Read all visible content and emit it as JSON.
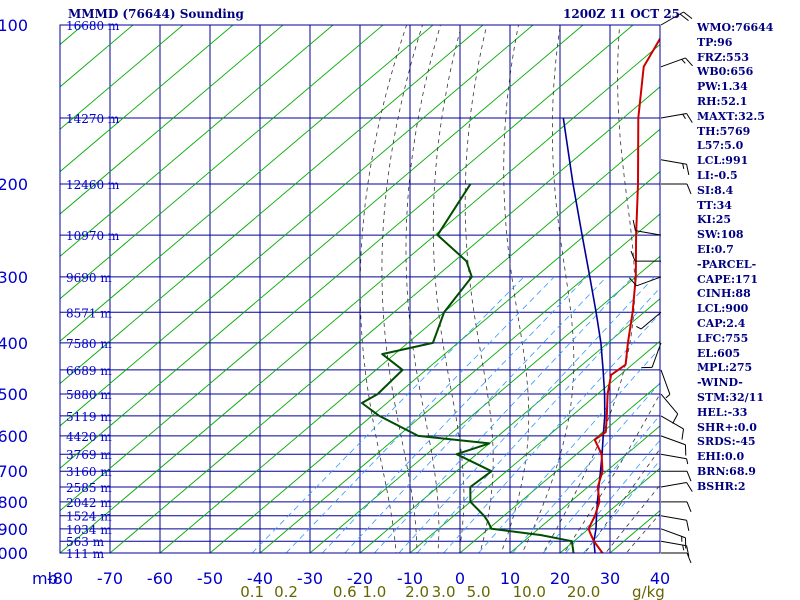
{
  "header": {
    "station": "MMMD (76644) Sounding",
    "datetime": "1200Z 11 OCT 25"
  },
  "indices": [
    "WMO:76644",
    "TP:96",
    "FRZ:553",
    "WB0:656",
    "PW:1.34",
    "RH:52.1",
    "MAXT:32.5",
    "TH:5769",
    "L57:5.0",
    "LCL:991",
    "LI:-0.5",
    "SI:8.4",
    "TT:34",
    "KI:25",
    "SW:108",
    "EI:0.7",
    "-PARCEL-",
    "CAPE:171",
    "CINH:88",
    "LCL:900",
    "CAP:2.4",
    "LFC:755",
    "EL:605",
    "MPL:275",
    "-WIND-",
    "STM:32/11",
    "HEL:-33",
    "SHR+:0.0",
    "SRDS:-45",
    "EHI:0.0",
    "BRN:68.9",
    "BSHR:2"
  ],
  "colors": {
    "isobar": "#000099",
    "isotherm": "#000099",
    "dry_adiabat": "#00aa00",
    "moist_adiabat": "#333333",
    "mixing_ratio": "#3399ff",
    "temperature": "#cc0000",
    "dewpoint": "#004d00",
    "parcel": "#000099",
    "axis_text": "#0000cc",
    "mixing_text": "#666600",
    "wind": "#000000"
  },
  "chart_data": {
    "type": "skew-t",
    "xlabel_unit": "mb",
    "mixing_unit": "g/kg",
    "pressure_axis": [
      100,
      1000
    ],
    "temperature_axis": [
      -80,
      40
    ],
    "pressure_ticks": [
      100,
      200,
      300,
      400,
      500,
      600,
      700,
      800,
      900,
      1000
    ],
    "pressure_tick_labels": [
      "100",
      "200",
      "300",
      "400",
      "500",
      "600",
      "700",
      "800",
      "900",
      "1000"
    ],
    "temperature_ticks": [
      -80,
      -70,
      -60,
      -50,
      -40,
      -30,
      -20,
      -10,
      0,
      10,
      20,
      30,
      40
    ],
    "temperature_tick_labels": [
      "-80",
      "-70",
      "-60",
      "-50",
      "-40",
      "-30",
      "-20",
      "-10",
      "0",
      "10",
      "20",
      "30",
      "40"
    ],
    "mixing_ratio_labels": [
      {
        "text": "0.1",
        "value": 0.1
      },
      {
        "text": "0.2",
        "value": 0.2
      },
      {
        "text": "0.6",
        "value": 0.6
      },
      {
        "text": "1.0",
        "value": 1.0
      },
      {
        "text": "2.0",
        "value": 2.0
      },
      {
        "text": "3.0",
        "value": 3.0
      },
      {
        "text": "5.0",
        "value": 5.0
      },
      {
        "text": "10.0",
        "value": 10.0
      },
      {
        "text": "20.0",
        "value": 20.0
      }
    ],
    "mixing_ratio_lines": [
      0.1,
      0.2,
      0.4,
      0.6,
      1.0,
      1.5,
      2.0,
      3.0,
      5.0,
      8.0,
      12.0,
      16.0,
      20.0
    ],
    "height_labels": [
      {
        "p": 100,
        "text": "16680 m"
      },
      {
        "p": 150,
        "text": "14270 m"
      },
      {
        "p": 200,
        "text": "12460 m"
      },
      {
        "p": 250,
        "text": "10970 m"
      },
      {
        "p": 300,
        "text": "9690 m"
      },
      {
        "p": 350,
        "text": "8571 m"
      },
      {
        "p": 400,
        "text": "7580 m"
      },
      {
        "p": 450,
        "text": "6689 m"
      },
      {
        "p": 500,
        "text": "5880 m"
      },
      {
        "p": 550,
        "text": "5119 m"
      },
      {
        "p": 600,
        "text": "4420 m"
      },
      {
        "p": 650,
        "text": "3769 m"
      },
      {
        "p": 700,
        "text": "3160 m"
      },
      {
        "p": 750,
        "text": "2585 m"
      },
      {
        "p": 800,
        "text": "2042 m"
      },
      {
        "p": 850,
        "text": "1524 m"
      },
      {
        "p": 900,
        "text": "1034 m"
      },
      {
        "p": 950,
        "text": "563 m"
      },
      {
        "p": 1000,
        "text": "111 m"
      }
    ],
    "temperature": [
      {
        "p": 1011,
        "t": 26.0
      },
      {
        "p": 1000,
        "t": 28.5
      },
      {
        "p": 950,
        "t": 24.0
      },
      {
        "p": 925,
        "t": 22.0
      },
      {
        "p": 900,
        "t": 20.0
      },
      {
        "p": 850,
        "t": 18.2
      },
      {
        "p": 800,
        "t": 15.8
      },
      {
        "p": 750,
        "t": 12.0
      },
      {
        "p": 700,
        "t": 9.2
      },
      {
        "p": 650,
        "t": 5.0
      },
      {
        "p": 610,
        "t": 0.2
      },
      {
        "p": 590,
        "t": 0.6
      },
      {
        "p": 550,
        "t": -3.0
      },
      {
        "p": 500,
        "t": -8.0
      },
      {
        "p": 460,
        "t": -11.8
      },
      {
        "p": 440,
        "t": -11.3
      },
      {
        "p": 400,
        "t": -16.0
      },
      {
        "p": 350,
        "t": -22.3
      },
      {
        "p": 300,
        "t": -30.0
      },
      {
        "p": 250,
        "t": -39.8
      },
      {
        "p": 200,
        "t": -51.5
      },
      {
        "p": 150,
        "t": -67.0
      },
      {
        "p": 120,
        "t": -78.0
      },
      {
        "p": 100,
        "t": -83.0
      }
    ],
    "dewpoint": [
      {
        "p": 1000,
        "t": 22.7
      },
      {
        "p": 950,
        "t": 19.6
      },
      {
        "p": 925,
        "t": 12.0
      },
      {
        "p": 900,
        "t": 0.6
      },
      {
        "p": 870,
        "t": -2.0
      },
      {
        "p": 850,
        "t": -4.0
      },
      {
        "p": 800,
        "t": -10.0
      },
      {
        "p": 750,
        "t": -13.5
      },
      {
        "p": 700,
        "t": -13.0
      },
      {
        "p": 650,
        "t": -24.0
      },
      {
        "p": 620,
        "t": -20.0
      },
      {
        "p": 600,
        "t": -36.0
      },
      {
        "p": 550,
        "t": -48.5
      },
      {
        "p": 520,
        "t": -55.0
      },
      {
        "p": 500,
        "t": -54.0
      },
      {
        "p": 450,
        "t": -54.7
      },
      {
        "p": 420,
        "t": -62.5
      },
      {
        "p": 400,
        "t": -55.0
      },
      {
        "p": 350,
        "t": -60.0
      },
      {
        "p": 300,
        "t": -62.8
      },
      {
        "p": 280,
        "t": -67.6
      },
      {
        "p": 250,
        "t": -79.5
      },
      {
        "p": 200,
        "t": -85.0
      }
    ],
    "parcel": [
      {
        "p": 1000,
        "t": 27.0
      },
      {
        "p": 950,
        "t": 24.0
      },
      {
        "p": 900,
        "t": 21.5
      },
      {
        "p": 850,
        "t": 18.5
      },
      {
        "p": 800,
        "t": 15.4
      },
      {
        "p": 750,
        "t": 12.2
      },
      {
        "p": 700,
        "t": 8.8
      },
      {
        "p": 650,
        "t": 5.1
      },
      {
        "p": 600,
        "t": 1.0
      },
      {
        "p": 550,
        "t": -3.4
      },
      {
        "p": 500,
        "t": -8.6
      },
      {
        "p": 450,
        "t": -14.6
      },
      {
        "p": 400,
        "t": -21.4
      },
      {
        "p": 350,
        "t": -29.6
      },
      {
        "p": 300,
        "t": -39.2
      },
      {
        "p": 250,
        "t": -50.6
      },
      {
        "p": 200,
        "t": -64.5
      },
      {
        "p": 150,
        "t": -82.0
      }
    ],
    "winds": [
      {
        "p": 1000,
        "dir": 90,
        "spd": 10
      },
      {
        "p": 950,
        "dir": 100,
        "spd": 15
      },
      {
        "p": 900,
        "dir": 110,
        "spd": 15
      },
      {
        "p": 850,
        "dir": 100,
        "spd": 10
      },
      {
        "p": 800,
        "dir": 90,
        "spd": 10
      },
      {
        "p": 750,
        "dir": 80,
        "spd": 10
      },
      {
        "p": 700,
        "dir": 90,
        "spd": 10
      },
      {
        "p": 650,
        "dir": 100,
        "spd": 5
      },
      {
        "p": 600,
        "dir": 110,
        "spd": 10
      },
      {
        "p": 550,
        "dir": 120,
        "spd": 10
      },
      {
        "p": 500,
        "dir": 140,
        "spd": 10
      },
      {
        "p": 450,
        "dir": 160,
        "spd": 5
      },
      {
        "p": 400,
        "dir": 200,
        "spd": 10
      },
      {
        "p": 350,
        "dir": 230,
        "spd": 5
      },
      {
        "p": 300,
        "dir": 250,
        "spd": 10
      },
      {
        "p": 280,
        "dir": 270,
        "spd": 10
      },
      {
        "p": 250,
        "dir": 280,
        "spd": 10
      },
      {
        "p": 200,
        "dir": 90,
        "spd": 10
      },
      {
        "p": 180,
        "dir": 100,
        "spd": 15
      },
      {
        "p": 150,
        "dir": 80,
        "spd": 15
      },
      {
        "p": 120,
        "dir": 70,
        "spd": 15
      },
      {
        "p": 100,
        "dir": 60,
        "spd": 20
      }
    ]
  }
}
